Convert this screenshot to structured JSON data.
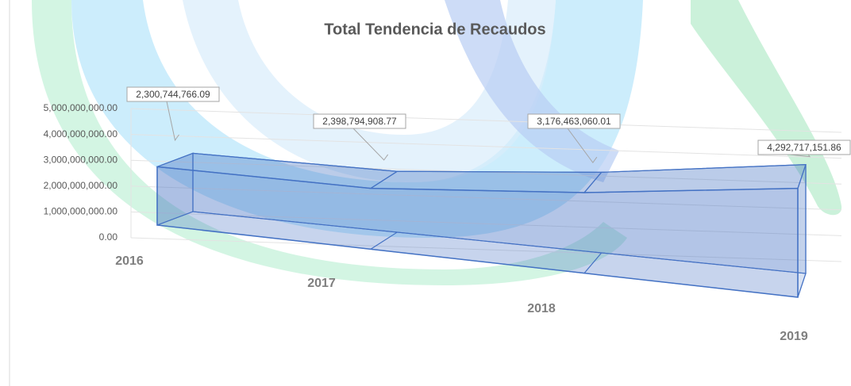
{
  "chart_data": {
    "type": "area3d",
    "title": "Total Tendencia de Recaudos",
    "categories": [
      "2016",
      "2017",
      "2018",
      "2019"
    ],
    "values": [
      2300744766.09,
      2398794908.77,
      3176463060.01,
      4292717151.86
    ],
    "value_labels": [
      "2,300,744,766.09",
      "2,398,794,908.77",
      "3,176,463,060.01",
      "4,292,717,151.86"
    ],
    "color": "#4472c4",
    "ylim": [
      0,
      5000000000
    ],
    "yticks": [
      {
        "value": 0,
        "label": "0.00"
      },
      {
        "value": 1000000000,
        "label": "1,000,000,000.00"
      },
      {
        "value": 2000000000,
        "label": "2,000,000,000.00"
      },
      {
        "value": 3000000000,
        "label": "3,000,000,000.00"
      },
      {
        "value": 4000000000,
        "label": "4,000,000,000.00"
      },
      {
        "value": 5000000000,
        "label": "5,000,000,000.00"
      }
    ],
    "grid": true
  }
}
